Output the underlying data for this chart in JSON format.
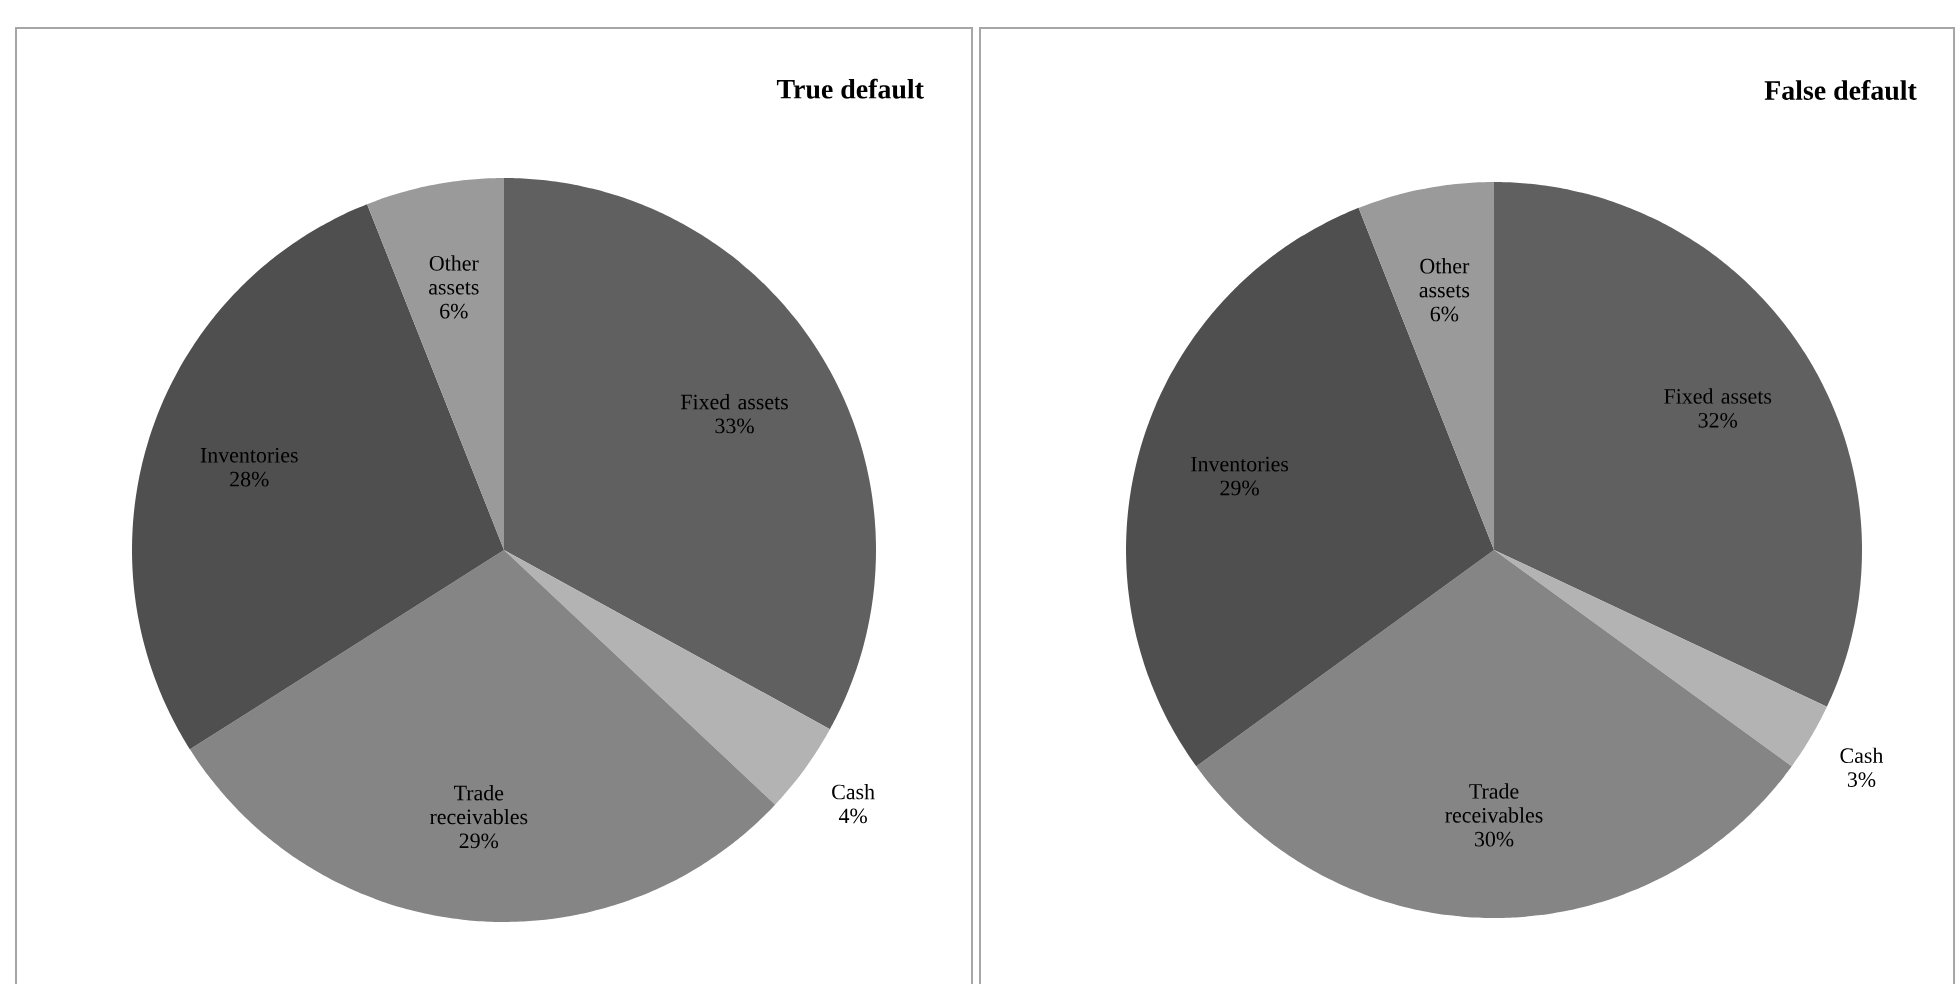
{
  "chart_data": [
    {
      "type": "pie",
      "title": "True default",
      "categories": [
        "Fixed assets",
        "Cash",
        "Trade receivables",
        "Inventories",
        "Other assets"
      ],
      "values": [
        33,
        4,
        29,
        28,
        6
      ],
      "value_labels": [
        "33%",
        "4%",
        "29%",
        "28%",
        "6%"
      ],
      "colors": [
        "#606060",
        "#b3b3b3",
        "#858585",
        "#4f4f4f",
        "#9a9a9a"
      ]
    },
    {
      "type": "pie",
      "title": "False default",
      "categories": [
        "Fixed assets",
        "Cash",
        "Trade receivables",
        "Inventories",
        "Other assets"
      ],
      "values": [
        32,
        3,
        30,
        29,
        6
      ],
      "value_labels": [
        "32%",
        "3%",
        "30%",
        "29%",
        "6%"
      ],
      "colors": [
        "#606060",
        "#b3b3b3",
        "#858585",
        "#4f4f4f",
        "#9a9a9a"
      ]
    }
  ]
}
